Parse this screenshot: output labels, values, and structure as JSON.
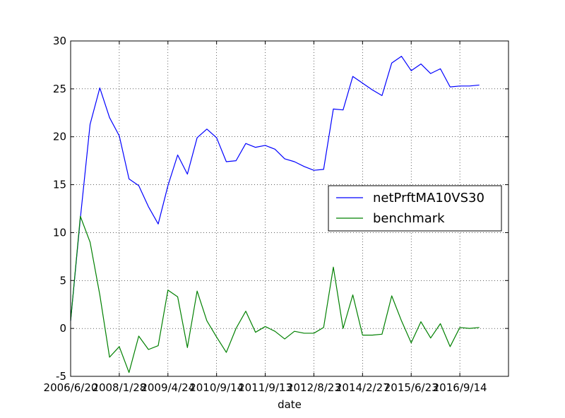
{
  "chart_data": {
    "type": "line",
    "title": "",
    "xlabel": "date",
    "ylabel": "",
    "x_tick_labels": [
      "2006/6/20",
      "2008/1/28",
      "2009/4/24",
      "2010/9/14",
      "2011/9/13",
      "2012/8/23",
      "2014/2/27",
      "2015/6/23",
      "2016/9/14"
    ],
    "x_tick_index": [
      0,
      5,
      10,
      15,
      20,
      25,
      30,
      35,
      40
    ],
    "y_ticks": [
      -5,
      0,
      5,
      10,
      15,
      20,
      25,
      30
    ],
    "xlim": [
      0,
      45
    ],
    "ylim": [
      -5,
      30
    ],
    "grid": true,
    "grid_style": "dotted",
    "legend_location": "center-right",
    "series": [
      {
        "name": "netPrftMA10VS30",
        "color": "#0000ff",
        "values": [
          0.8,
          11.5,
          21.3,
          25.1,
          22.0,
          20.1,
          15.6,
          14.9,
          12.7,
          10.9,
          14.9,
          18.1,
          16.1,
          19.9,
          20.8,
          19.9,
          17.4,
          17.5,
          19.3,
          18.9,
          19.1,
          18.7,
          17.7,
          17.4,
          16.9,
          16.5,
          16.6,
          22.9,
          22.8,
          26.3,
          25.6,
          24.9,
          24.3,
          27.7,
          28.4,
          26.9,
          27.6,
          26.6,
          27.1,
          25.2,
          25.3,
          25.3,
          25.4
        ]
      },
      {
        "name": "benchmark",
        "color": "#008000",
        "values": [
          0.8,
          11.7,
          9.0,
          3.5,
          -3.0,
          -1.9,
          -4.6,
          -0.8,
          -2.2,
          -1.8,
          4.0,
          3.3,
          -2.0,
          3.9,
          0.8,
          -0.9,
          -2.5,
          0.0,
          1.8,
          -0.4,
          0.2,
          -0.3,
          -1.1,
          -0.3,
          -0.5,
          -0.5,
          0.1,
          6.4,
          0.0,
          3.5,
          -0.7,
          -0.7,
          -0.6,
          3.4,
          0.8,
          -1.5,
          0.7,
          -1.0,
          0.5,
          -1.9,
          0.1,
          -0.0,
          0.1
        ]
      }
    ]
  }
}
